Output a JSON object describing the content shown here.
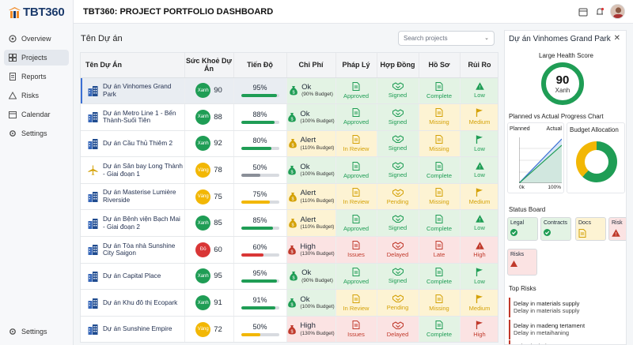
{
  "brand": {
    "name": "TBT360"
  },
  "header": {
    "title": "TBT360: PROJECT PORTFOLIO DASHBOARD"
  },
  "nav": [
    {
      "label": "Overview",
      "icon": "grid-icon"
    },
    {
      "label": "Projects",
      "icon": "projects-icon",
      "active": true
    },
    {
      "label": "Reports",
      "icon": "reports-icon"
    },
    {
      "label": "Risks",
      "icon": "warning-icon"
    },
    {
      "label": "Calendar",
      "icon": "calendar-icon"
    },
    {
      "label": "Settings",
      "icon": "gear-icon"
    }
  ],
  "nav_bottom": {
    "label": "Settings"
  },
  "main": {
    "title": "Tên Dự án",
    "search_placeholder": "Search projects"
  },
  "table": {
    "headers": [
      "Tên Dự Án",
      "Sức Khoẻ Dự Án",
      "Tiến Độ",
      "Chi Phí",
      "Pháp Lý",
      "Hợp Đồng",
      "Hồ Sơ",
      "Rủi Ro"
    ],
    "rows": [
      {
        "name": "Dự án Vinhomes Grand Park",
        "icon": "building-icon",
        "health_label": "Xanh",
        "health": 90,
        "health_color": "#1f9d55",
        "progress": "95%",
        "progress_value": 95,
        "bar_color": "#1f9d55",
        "cost": {
          "label": "Ok",
          "budget": "(90% Budget)",
          "tone": "green"
        },
        "legal": {
          "label": "Approved",
          "tone": "green"
        },
        "contract": {
          "label": "Signed",
          "tone": "green"
        },
        "docs": {
          "label": "Complete",
          "tone": "green"
        },
        "risk": {
          "label": "Low",
          "tone": "green",
          "icon": "warning-icon"
        }
      },
      {
        "name": "Dự án Metro Line 1 - Bến Thành-Suối Tiên",
        "icon": "building-icon",
        "health_label": "Xanh",
        "health": 88,
        "health_color": "#1f9d55",
        "progress": "88%",
        "progress_value": 88,
        "bar_color": "#1f9d55",
        "cost": {
          "label": "Ok",
          "budget": "(100% Budget)",
          "tone": "green"
        },
        "legal": {
          "label": "Approved",
          "tone": "green"
        },
        "contract": {
          "label": "Signed",
          "tone": "green"
        },
        "docs": {
          "label": "Missing",
          "tone": "yellow"
        },
        "risk": {
          "label": "Medium",
          "tone": "yellow",
          "icon": "flag-icon"
        }
      },
      {
        "name": "Dự án Cầu Thủ Thiêm 2",
        "icon": "building-icon",
        "health_label": "Xanh",
        "health": 92,
        "health_color": "#1f9d55",
        "progress": "80%",
        "progress_value": 80,
        "bar_color": "#1f9d55",
        "cost": {
          "label": "Alert",
          "budget": "(110% Budget)",
          "tone": "yellow"
        },
        "legal": {
          "label": "In Review",
          "tone": "yellow"
        },
        "contract": {
          "label": "Signed",
          "tone": "green"
        },
        "docs": {
          "label": "Missing",
          "tone": "yellow"
        },
        "risk": {
          "label": "Low",
          "tone": "green",
          "icon": "flag-icon"
        }
      },
      {
        "name": "Dự án Sân bay Long Thành - Giai đoạn 1",
        "icon": "plane-icon",
        "health_label": "Vàng",
        "health": 78,
        "health_color": "#f2b705",
        "progress": "50%",
        "progress_value": 50,
        "bar_color": "#8a8f98",
        "cost": {
          "label": "Ok",
          "budget": "(100% Budget)",
          "tone": "green"
        },
        "legal": {
          "label": "Approved",
          "tone": "green"
        },
        "contract": {
          "label": "Signed",
          "tone": "green"
        },
        "docs": {
          "label": "Complete",
          "tone": "green"
        },
        "risk": {
          "label": "Low",
          "tone": "green",
          "icon": "warning-icon"
        }
      },
      {
        "name": "Dự án Masterise Lumière Riverside",
        "icon": "building-icon",
        "health_label": "Vàng",
        "health": 75,
        "health_color": "#f2b705",
        "progress": "75%",
        "progress_value": 75,
        "bar_color": "#f2b705",
        "cost": {
          "label": "Alert",
          "budget": "(110% Budget)",
          "tone": "yellow"
        },
        "legal": {
          "label": "In Review",
          "tone": "yellow"
        },
        "contract": {
          "label": "Pending",
          "tone": "yellow"
        },
        "docs": {
          "label": "Missing",
          "tone": "yellow"
        },
        "risk": {
          "label": "Medium",
          "tone": "yellow",
          "icon": "flag-icon"
        }
      },
      {
        "name": "Dự án Bệnh viện Bạch Mai - Giai đoạn 2",
        "icon": "building-icon",
        "health_label": "Xanh",
        "health": 85,
        "health_color": "#1f9d55",
        "progress": "85%",
        "progress_value": 85,
        "bar_color": "#1f9d55",
        "cost": {
          "label": "Alert",
          "budget": "(110% Budget)",
          "tone": "yellow"
        },
        "legal": {
          "label": "Approved",
          "tone": "green"
        },
        "contract": {
          "label": "Signed",
          "tone": "green"
        },
        "docs": {
          "label": "Complete",
          "tone": "green"
        },
        "risk": {
          "label": "Low",
          "tone": "green",
          "icon": "warning-icon"
        }
      },
      {
        "name": "Dự án Tòa nhà Sunshine City Saigon",
        "icon": "building-icon",
        "health_label": "Đỏ",
        "health": 60,
        "health_color": "#d93636",
        "progress": "60%",
        "progress_value": 60,
        "bar_color": "#d93636",
        "cost": {
          "label": "High",
          "budget": "(130% Budget)",
          "tone": "red"
        },
        "legal": {
          "label": "Issues",
          "tone": "red"
        },
        "contract": {
          "label": "Delayed",
          "tone": "red"
        },
        "docs": {
          "label": "Late",
          "tone": "red"
        },
        "risk": {
          "label": "High",
          "tone": "red",
          "icon": "warning-icon"
        }
      },
      {
        "name": "Dự án Capital Place",
        "icon": "building-icon",
        "health_label": "Xanh",
        "health": 95,
        "health_color": "#1f9d55",
        "progress": "95%",
        "progress_value": 95,
        "bar_color": "#1f9d55",
        "cost": {
          "label": "Ok",
          "budget": "(90% Budget)",
          "tone": "green"
        },
        "legal": {
          "label": "Approved",
          "tone": "green"
        },
        "contract": {
          "label": "Signed",
          "tone": "green"
        },
        "docs": {
          "label": "Complete",
          "tone": "green"
        },
        "risk": {
          "label": "Low",
          "tone": "green",
          "icon": "flag-icon"
        }
      },
      {
        "name": "Dự án Khu đô thị Ecopark",
        "icon": "building-icon",
        "health_label": "Xanh",
        "health": 91,
        "health_color": "#1f9d55",
        "progress": "91%",
        "progress_value": 91,
        "bar_color": "#1f9d55",
        "cost": {
          "label": "Ok",
          "budget": "(100% Budget)",
          "tone": "green"
        },
        "legal": {
          "label": "In Review",
          "tone": "yellow"
        },
        "contract": {
          "label": "Pending",
          "tone": "yellow"
        },
        "docs": {
          "label": "Missing",
          "tone": "yellow"
        },
        "risk": {
          "label": "Medium",
          "tone": "yellow",
          "icon": "flag-icon"
        }
      },
      {
        "name": "Dự án Sunshine Empire",
        "icon": "building-icon",
        "health_label": "Vàng",
        "health": 72,
        "health_color": "#f2b705",
        "progress": "50%",
        "progress_value": 50,
        "bar_color": "#f2b705",
        "cost": {
          "label": "High",
          "budget": "(130% Budget)",
          "tone": "red"
        },
        "legal": {
          "label": "Issues",
          "tone": "red"
        },
        "contract": {
          "label": "Delayed",
          "tone": "red"
        },
        "docs": {
          "label": "Complete",
          "tone": "green"
        },
        "risk": {
          "label": "High",
          "tone": "red",
          "icon": "flag-icon"
        }
      }
    ]
  },
  "panel": {
    "title": "Dự án Vinhomes Grand Park",
    "health_title": "Large Health Score",
    "health_value": "90",
    "health_label": "Xanh",
    "chart_title": "Planned vs Actual Progress Chart",
    "planned_label": "Planned",
    "actual_label": "Actual",
    "axis_x0": "0k",
    "axis_x1": "100%",
    "budget_title": "Budget Allocation",
    "status_board_title": "Status Board",
    "status_cards": [
      {
        "label": "Legal",
        "tone": "green",
        "icon": "check-icon"
      },
      {
        "label": "Contracts",
        "tone": "green",
        "icon": "check-icon"
      },
      {
        "label": "Docs",
        "tone": "yellow",
        "icon": "doc-icon"
      },
      {
        "label": "Risk",
        "tone": "red",
        "icon": "warning-icon"
      }
    ],
    "risks_card": {
      "label": "Risks",
      "tone": "red"
    },
    "top_risks_title": "Top Risks",
    "top_risks": [
      {
        "title": "Delay in materials supply",
        "sub": "Delay in materials supply"
      },
      {
        "title": "Delay in madeng tertament",
        "sub": "Delay in metaihaning"
      },
      {
        "title": "Delay-inohoirs",
        "sub": ""
      }
    ]
  },
  "colors": {
    "green": "#1f9d55",
    "yellow": "#f2b705",
    "red": "#d93636",
    "accent": "#3b6fd4"
  }
}
